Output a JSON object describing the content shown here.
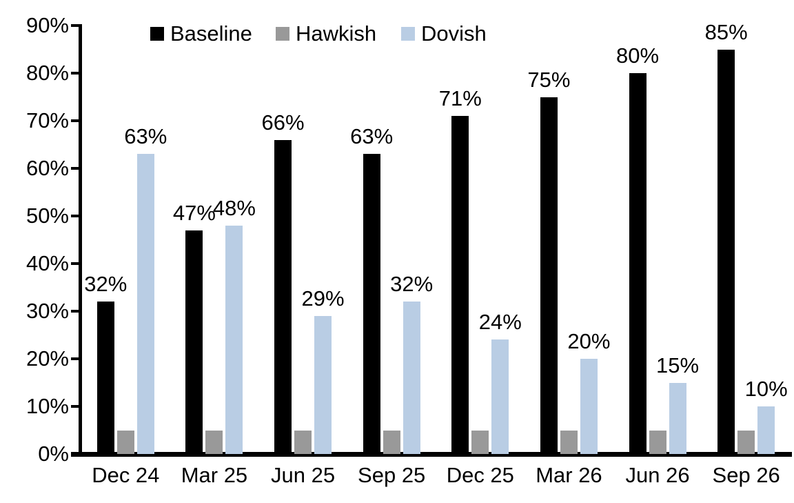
{
  "chart_data": {
    "type": "bar",
    "title": "",
    "xlabel": "",
    "ylabel": "",
    "categories": [
      "Dec 24",
      "Mar 25",
      "Jun 25",
      "Sep 25",
      "Dec 25",
      "Mar 26",
      "Jun 26",
      "Sep 26"
    ],
    "series": [
      {
        "name": "Baseline",
        "color": "#000000",
        "values": [
          32,
          47,
          66,
          63,
          71,
          75,
          80,
          85
        ],
        "labels": [
          "32%",
          "47%",
          "66%",
          "63%",
          "71%",
          "75%",
          "80%",
          "85%"
        ]
      },
      {
        "name": "Hawkish",
        "color": "#999999",
        "values": [
          5,
          5,
          5,
          5,
          5,
          5,
          5,
          5
        ],
        "labels": [
          "",
          "",
          "",
          "",
          "",
          "",
          "",
          ""
        ]
      },
      {
        "name": "Dovish",
        "color": "#b9cde4",
        "values": [
          63,
          48,
          29,
          32,
          24,
          20,
          15,
          10
        ],
        "labels": [
          "63%",
          "48%",
          "29%",
          "32%",
          "24%",
          "20%",
          "15%",
          "10%"
        ]
      }
    ],
    "ylim": [
      0,
      90
    ],
    "ytick_step": 10,
    "ytick_labels": [
      "0%",
      "10%",
      "20%",
      "30%",
      "40%",
      "50%",
      "60%",
      "70%",
      "80%",
      "90%"
    ],
    "grid": false,
    "legend_position": "top",
    "axis_color": "#000000",
    "background_color": "#ffffff"
  }
}
